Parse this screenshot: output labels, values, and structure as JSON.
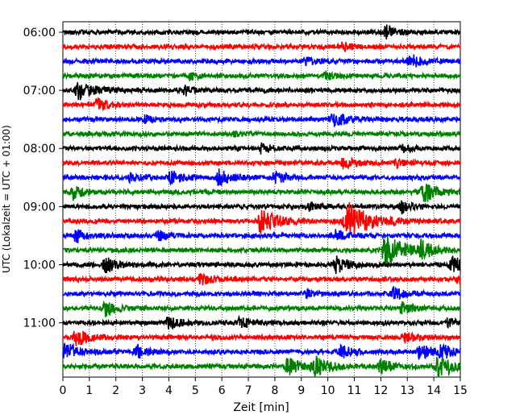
{
  "chart_data": {
    "type": "line",
    "title": "",
    "xlabel": "Zeit  [min]",
    "ylabel": "UTC (Lokalzeit = UTC + 01:00)",
    "x_ticks": [
      "0",
      "1",
      "2",
      "3",
      "4",
      "5",
      "6",
      "7",
      "8",
      "9",
      "10",
      "11",
      "12",
      "13",
      "14",
      "15"
    ],
    "xlim": [
      0,
      15
    ],
    "grid": "vertical dotted",
    "y_tick_labels": [
      "06:00",
      "07:00",
      "08:00",
      "09:00",
      "10:00",
      "11:00"
    ],
    "series": [
      {
        "start": "06:00",
        "color": "#000000",
        "events": [
          {
            "x": 12.2,
            "amp": 0.35
          }
        ]
      },
      {
        "start": "06:15",
        "color": "#ff0000",
        "events": [
          {
            "x": 10.5,
            "amp": 0.3
          }
        ]
      },
      {
        "start": "06:30",
        "color": "#0000ff",
        "events": [
          {
            "x": 13.1,
            "amp": 0.4
          },
          {
            "x": 9.2,
            "amp": 0.2
          }
        ]
      },
      {
        "start": "06:45",
        "color": "#008000",
        "events": [
          {
            "x": 4.8,
            "amp": 0.2
          },
          {
            "x": 9.9,
            "amp": 0.2
          }
        ]
      },
      {
        "start": "07:00",
        "color": "#000000",
        "events": [
          {
            "x": 0.6,
            "amp": 0.55
          },
          {
            "x": 4.6,
            "amp": 0.25
          }
        ]
      },
      {
        "start": "07:15",
        "color": "#ff0000",
        "events": [
          {
            "x": 1.3,
            "amp": 0.35
          }
        ]
      },
      {
        "start": "07:30",
        "color": "#0000ff",
        "events": [
          {
            "x": 10.2,
            "amp": 0.45
          },
          {
            "x": 3.1,
            "amp": 0.2
          }
        ]
      },
      {
        "start": "07:45",
        "color": "#008000",
        "events": [
          {
            "x": 6.5,
            "amp": 0.15
          }
        ]
      },
      {
        "start": "08:00",
        "color": "#000000",
        "events": [
          {
            "x": 7.5,
            "amp": 0.25
          },
          {
            "x": 12.8,
            "amp": 0.2
          }
        ]
      },
      {
        "start": "08:15",
        "color": "#ff0000",
        "events": [
          {
            "x": 10.6,
            "amp": 0.3
          },
          {
            "x": 12.6,
            "amp": 0.25
          }
        ]
      },
      {
        "start": "08:30",
        "color": "#0000ff",
        "events": [
          {
            "x": 4.1,
            "amp": 0.4
          },
          {
            "x": 5.9,
            "amp": 0.45
          },
          {
            "x": 8.0,
            "amp": 0.35
          },
          {
            "x": 2.5,
            "amp": 0.25
          }
        ]
      },
      {
        "start": "08:45",
        "color": "#008000",
        "events": [
          {
            "x": 13.6,
            "amp": 0.6
          },
          {
            "x": 0.4,
            "amp": 0.35
          }
        ]
      },
      {
        "start": "09:00",
        "color": "#000000",
        "events": [
          {
            "x": 12.8,
            "amp": 0.3
          },
          {
            "x": 9.3,
            "amp": 0.2
          }
        ]
      },
      {
        "start": "09:15",
        "color": "#ff0000",
        "events": [
          {
            "x": 7.5,
            "amp": 0.7
          },
          {
            "x": 10.8,
            "amp": 1.0
          }
        ]
      },
      {
        "start": "09:30",
        "color": "#0000ff",
        "events": [
          {
            "x": 0.5,
            "amp": 0.35
          },
          {
            "x": 3.6,
            "amp": 0.3
          },
          {
            "x": 10.3,
            "amp": 0.3
          }
        ]
      },
      {
        "start": "09:45",
        "color": "#008000",
        "events": [
          {
            "x": 12.2,
            "amp": 0.85
          },
          {
            "x": 13.5,
            "amp": 0.45
          }
        ]
      },
      {
        "start": "10:00",
        "color": "#000000",
        "events": [
          {
            "x": 1.6,
            "amp": 0.4
          },
          {
            "x": 10.3,
            "amp": 0.45
          },
          {
            "x": 14.7,
            "amp": 0.45
          }
        ]
      },
      {
        "start": "10:15",
        "color": "#ff0000",
        "events": [
          {
            "x": 5.2,
            "amp": 0.3
          },
          {
            "x": 14.9,
            "amp": 0.25
          }
        ]
      },
      {
        "start": "10:30",
        "color": "#0000ff",
        "events": [
          {
            "x": 12.5,
            "amp": 0.35
          },
          {
            "x": 9.2,
            "amp": 0.2
          }
        ]
      },
      {
        "start": "10:45",
        "color": "#008000",
        "events": [
          {
            "x": 1.6,
            "amp": 0.45
          },
          {
            "x": 12.8,
            "amp": 0.3
          }
        ]
      },
      {
        "start": "11:00",
        "color": "#000000",
        "events": [
          {
            "x": 4.0,
            "amp": 0.35
          },
          {
            "x": 6.7,
            "amp": 0.3
          },
          {
            "x": 14.5,
            "amp": 0.25
          }
        ]
      },
      {
        "start": "11:15",
        "color": "#ff0000",
        "events": [
          {
            "x": 0.5,
            "amp": 0.5
          },
          {
            "x": 12.9,
            "amp": 0.3
          }
        ]
      },
      {
        "start": "11:30",
        "color": "#0000ff",
        "events": [
          {
            "x": 0.1,
            "amp": 0.5
          },
          {
            "x": 2.8,
            "amp": 0.35
          },
          {
            "x": 10.5,
            "amp": 0.35
          },
          {
            "x": 13.5,
            "amp": 0.45
          },
          {
            "x": 14.3,
            "amp": 0.35
          }
        ]
      },
      {
        "start": "11:45",
        "color": "#008000",
        "events": [
          {
            "x": 8.5,
            "amp": 0.5
          },
          {
            "x": 9.5,
            "amp": 0.55
          },
          {
            "x": 14.2,
            "amp": 0.6
          },
          {
            "x": 12.0,
            "amp": 0.4
          }
        ]
      }
    ]
  }
}
